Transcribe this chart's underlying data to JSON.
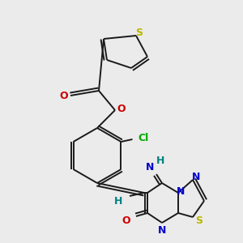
{
  "bg_color": "#ebebeb",
  "bond_color": "#1a1a1a",
  "bond_width": 1.4,
  "figsize": [
    3.0,
    3.0
  ],
  "dpi": 100,
  "colors": {
    "S": "#b8b800",
    "O": "#cc0000",
    "N": "#0000cc",
    "Cl": "#00aa00",
    "H": "#008080",
    "C": "#1a1a1a"
  }
}
